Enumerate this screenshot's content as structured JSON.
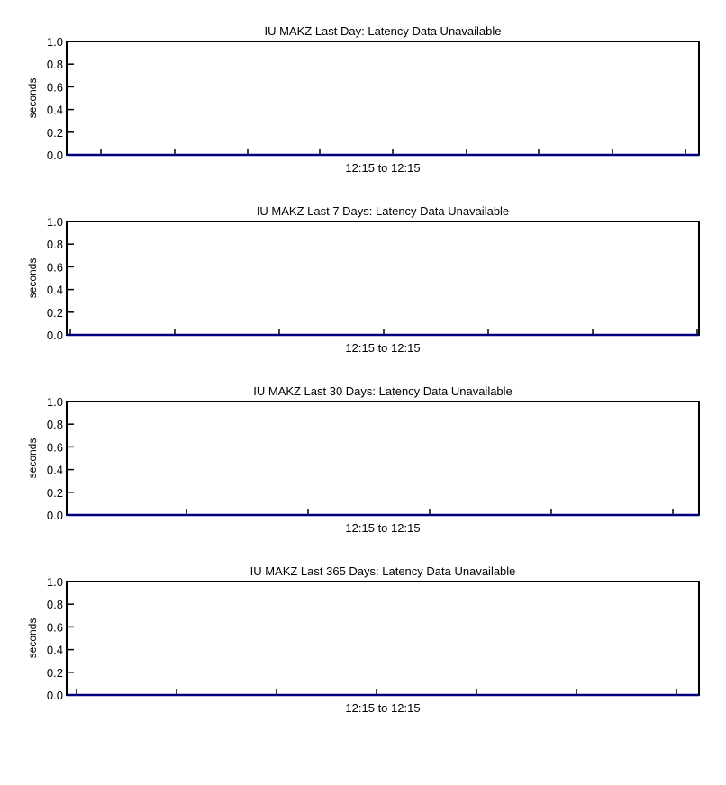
{
  "chart_data": [
    {
      "type": "line",
      "title": "IU  MAKZ  Last  Day:  Latency  Data  Unavailable",
      "ylabel": "seconds",
      "xlabel": "12:15  to   12:15",
      "ylim": [
        0,
        1
      ],
      "yticks": [
        "0.0",
        "0.2",
        "0.4",
        "0.6",
        "0.8",
        "1.0"
      ],
      "series": [
        {
          "values": [
            0,
            0
          ]
        }
      ]
    },
    {
      "type": "line",
      "title": "IU  MAKZ  Last  7  Days:  Latency  Data  Unavailable",
      "ylabel": "seconds",
      "xlabel": "12:15  to   12:15",
      "ylim": [
        0,
        1
      ],
      "yticks": [
        "0.0",
        "0.2",
        "0.4",
        "0.6",
        "0.8",
        "1.0"
      ],
      "series": [
        {
          "values": [
            0,
            0
          ]
        }
      ]
    },
    {
      "type": "line",
      "title": "IU  MAKZ  Last  30  Days:  Latency  Data  Unavailable",
      "ylabel": "seconds",
      "xlabel": "12:15  to   12:15",
      "ylim": [
        0,
        1
      ],
      "yticks": [
        "0.0",
        "0.2",
        "0.4",
        "0.6",
        "0.8",
        "1.0"
      ],
      "series": [
        {
          "values": [
            0,
            0
          ]
        }
      ]
    },
    {
      "type": "line",
      "title": "IU  MAKZ  Last  365  Days:  Latency  Data  Unavailable",
      "ylabel": "seconds",
      "xlabel": "12:15  to   12:15",
      "ylim": [
        0,
        1
      ],
      "yticks": [
        "0.0",
        "0.2",
        "0.4",
        "0.6",
        "0.8",
        "1.0"
      ],
      "series": [
        {
          "values": [
            0,
            0
          ]
        }
      ]
    }
  ],
  "colors": {
    "axis": "#000000",
    "series": "#00007f"
  }
}
